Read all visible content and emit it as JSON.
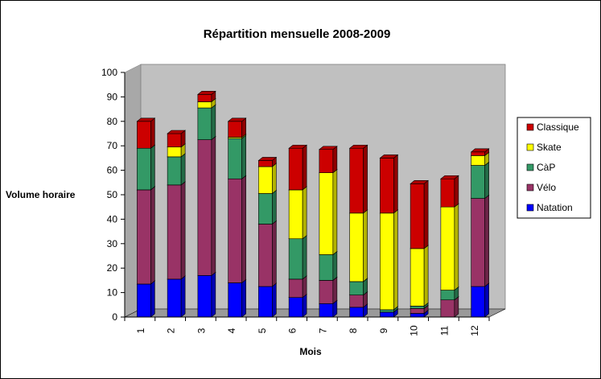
{
  "chart_data": {
    "type": "bar",
    "stacked": true,
    "style": "3d",
    "title": "Répartition mensuelle 2008-2009",
    "xlabel": "Mois",
    "ylabel": "Volume horaire",
    "ylim": [
      0,
      100
    ],
    "yticks": [
      0,
      10,
      20,
      30,
      40,
      50,
      60,
      70,
      80,
      90,
      100
    ],
    "categories": [
      "1",
      "2",
      "3",
      "4",
      "5",
      "6",
      "7",
      "8",
      "9",
      "10",
      "11",
      "12"
    ],
    "grid": false,
    "legend_position": "right",
    "series": [
      {
        "name": "Natation",
        "color": "#0000FF",
        "values": [
          13.5,
          15.5,
          17,
          14,
          12.5,
          8,
          5.5,
          4,
          2,
          1.5,
          0,
          12.5
        ]
      },
      {
        "name": "Vélo",
        "color": "#993366",
        "values": [
          38.5,
          38.5,
          55.5,
          42.5,
          25.5,
          7.5,
          9.5,
          5,
          0,
          2,
          7,
          36
        ]
      },
      {
        "name": "CàP",
        "color": "#339966",
        "values": [
          17,
          11.5,
          13,
          16.5,
          12.5,
          16.5,
          10.5,
          5.5,
          1,
          1,
          4,
          13.5
        ]
      },
      {
        "name": "Skate",
        "color": "#FFFF00",
        "values": [
          0,
          4,
          2.5,
          0.5,
          11,
          20,
          33.5,
          28,
          39.5,
          23.5,
          34,
          4
        ]
      },
      {
        "name": "Classique",
        "color": "#CC0000",
        "values": [
          11,
          5.5,
          3,
          6.5,
          2.5,
          17,
          9.5,
          26.5,
          22.5,
          26.5,
          11.5,
          1.5
        ]
      }
    ]
  }
}
